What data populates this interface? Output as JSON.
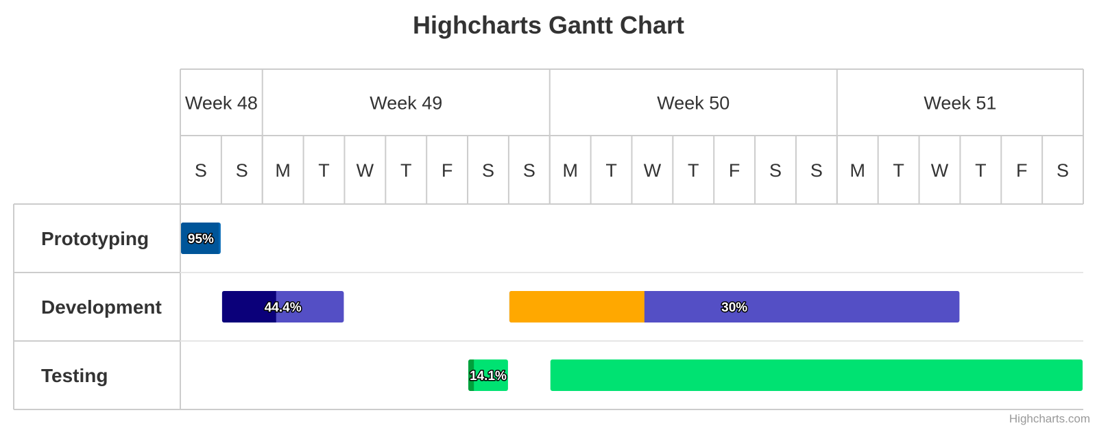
{
  "chart_data": {
    "type": "gantt",
    "title": "Highcharts Gantt Chart",
    "credits": "Highcharts.com",
    "x_start": "2024-11-30",
    "x_end": "2024-12-22",
    "weeks": [
      {
        "label": "Week 48",
        "start": "2024-11-30",
        "end": "2024-12-02"
      },
      {
        "label": "Week 49",
        "start": "2024-12-02",
        "end": "2024-12-09"
      },
      {
        "label": "Week 50",
        "start": "2024-12-09",
        "end": "2024-12-16"
      },
      {
        "label": "Week 51",
        "start": "2024-12-16",
        "end": "2024-12-22"
      }
    ],
    "day_labels": [
      "S",
      "S",
      "M",
      "T",
      "W",
      "T",
      "F",
      "S",
      "S",
      "M",
      "T",
      "W",
      "T",
      "F",
      "S",
      "S",
      "M",
      "T",
      "W",
      "T",
      "F",
      "S"
    ],
    "categories": [
      "Prototyping",
      "Development",
      "Testing"
    ],
    "tasks": [
      {
        "category": "Prototyping",
        "start": "2024-11-30",
        "end": "2024-12-01",
        "completed": 0.95,
        "color": "#0066b3",
        "done_color": "#005599",
        "label": "95%"
      },
      {
        "category": "Development",
        "start": "2024-12-01",
        "end": "2024-12-04",
        "completed": 0.444,
        "color": "#544fc5",
        "done_color": "#0b007a",
        "label": "44.4%"
      },
      {
        "category": "Development",
        "start": "2024-12-08",
        "end": "2024-12-19",
        "completed": 0.3,
        "color": "#544fc5",
        "done_color": "#ffa800",
        "label": "30%"
      },
      {
        "category": "Testing",
        "start": "2024-12-07",
        "end": "2024-12-08",
        "completed": 0.141,
        "color": "#00e272",
        "done_color": "#00a03c",
        "label": "14.1%"
      },
      {
        "category": "Testing",
        "start": "2024-12-09",
        "end": "2024-12-22",
        "completed": 0,
        "color": "#00e272",
        "done_color": "#00a03c",
        "label": ""
      }
    ]
  }
}
